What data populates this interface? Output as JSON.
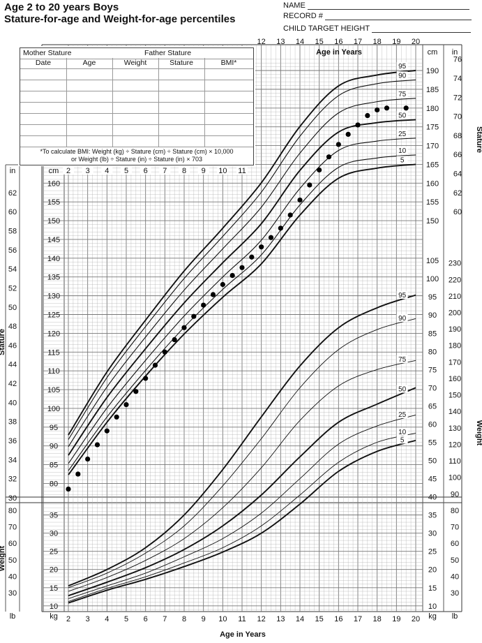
{
  "header": {
    "title_line1": "Age 2 to 20 years Boys",
    "title_line2": "Stature-for-age and Weight-for-age percentiles",
    "name_label": "NAME",
    "record_label": "RECORD #",
    "target_label": "CHILD TARGET HEIGHT"
  },
  "record_table": {
    "mother_label": "Mother Stature",
    "father_label": "Father Stature",
    "columns": [
      "Date",
      "Age",
      "Weight",
      "Stature",
      "BMI*"
    ],
    "note_line1": "*To calculate BMI: Weight (kg) ÷ Stature (cm) ÷ Stature (cm) × 10,000",
    "note_line2": "or Weight (lb) ÷ Stature (in) ÷ Stature (in) × 703"
  },
  "labels": {
    "age_axis_title": "Age in Years",
    "stature_axis_title": "Stature",
    "weight_axis_title": "Weight",
    "cm": "cm",
    "in": "in",
    "kg": "kg",
    "lb": "lb"
  },
  "chart_data": {
    "type": "line",
    "x_label": "Age in Years",
    "xlim": [
      2,
      20
    ],
    "x_ticks": [
      2,
      3,
      4,
      5,
      6,
      7,
      8,
      9,
      10,
      11,
      12,
      13,
      14,
      15,
      16,
      17,
      18,
      19,
      20
    ],
    "stature": {
      "unit": "cm",
      "ylim": [
        77,
        193
      ],
      "left_cm_ticks": [
        80,
        85,
        90,
        95,
        100,
        105,
        110,
        115,
        120,
        125,
        130,
        135,
        140,
        145,
        150,
        155,
        160
      ],
      "left_in_ticks": [
        30,
        32,
        34,
        36,
        38,
        40,
        42,
        44,
        46,
        48,
        50,
        52,
        54,
        56,
        58,
        60,
        62
      ],
      "right_cm_ticks": [
        150,
        155,
        160,
        165,
        170,
        175,
        180,
        185,
        190
      ],
      "right_in_ticks": [
        60,
        62,
        64,
        66,
        68,
        70,
        72,
        74,
        76
      ],
      "series": [
        {
          "name": "95",
          "ages": [
            2,
            4,
            6,
            8,
            10,
            12,
            14,
            16,
            18,
            20
          ],
          "values": [
            92.9,
            109.7,
            123.5,
            136.6,
            148.0,
            160.1,
            175.1,
            185.9,
            188.8,
            190.0
          ]
        },
        {
          "name": "90",
          "ages": [
            2,
            4,
            6,
            8,
            10,
            12,
            14,
            16,
            18,
            20
          ],
          "values": [
            91.7,
            108.2,
            121.8,
            134.6,
            145.8,
            157.6,
            172.5,
            183.3,
            186.5,
            187.5
          ]
        },
        {
          "name": "75",
          "ages": [
            2,
            4,
            6,
            8,
            10,
            12,
            14,
            16,
            18,
            20
          ],
          "values": [
            89.8,
            105.7,
            119.0,
            131.5,
            142.5,
            153.6,
            168.0,
            178.7,
            181.7,
            182.6
          ]
        },
        {
          "name": "50",
          "ages": [
            2,
            4,
            6,
            8,
            10,
            12,
            14,
            16,
            18,
            20
          ],
          "values": [
            87.5,
            102.9,
            115.9,
            128.1,
            138.8,
            149.2,
            163.4,
            173.6,
            176.1,
            176.9
          ]
        },
        {
          "name": "25",
          "ages": [
            2,
            4,
            6,
            8,
            10,
            12,
            14,
            16,
            18,
            20
          ],
          "values": [
            85.3,
            100.1,
            112.8,
            124.6,
            135.0,
            144.8,
            158.6,
            168.7,
            171.2,
            172.0
          ]
        },
        {
          "name": "10",
          "ages": [
            2,
            4,
            6,
            8,
            10,
            12,
            14,
            16,
            18,
            20
          ],
          "values": [
            83.4,
            97.7,
            110.1,
            121.6,
            131.7,
            140.9,
            154.2,
            164.2,
            166.7,
            167.5
          ]
        },
        {
          "name": "5",
          "ages": [
            2,
            4,
            6,
            8,
            10,
            12,
            14,
            16,
            18,
            20
          ],
          "values": [
            82.3,
            96.3,
            108.6,
            119.8,
            129.6,
            138.5,
            151.5,
            161.3,
            164.0,
            165.0
          ]
        }
      ],
      "points": {
        "ages": [
          2,
          2.5,
          3,
          3.5,
          4,
          4.5,
          5,
          5.5,
          6,
          6.5,
          7,
          7.5,
          8,
          8.5,
          9,
          9.5,
          10,
          10.5,
          11,
          11.5,
          12,
          12.5,
          13,
          13.5,
          14,
          14.5,
          15,
          15.5,
          16,
          16.5,
          17,
          17.5,
          18,
          18.5,
          19.5
        ],
        "values": [
          78.5,
          82.5,
          86.5,
          90.3,
          94.0,
          97.7,
          101.0,
          104.5,
          108.0,
          111.5,
          115.0,
          118.3,
          121.5,
          124.5,
          127.5,
          130.3,
          133.0,
          135.4,
          137.5,
          140.3,
          143.0,
          145.5,
          148.0,
          151.5,
          155.5,
          159.5,
          163.5,
          167.0,
          170.3,
          173.0,
          175.5,
          178.0,
          179.5,
          180.0,
          180.0
        ]
      }
    },
    "weight": {
      "unit": "kg",
      "ylim": [
        8.5,
        112
      ],
      "left_kg_ticks": [
        10,
        15,
        20,
        25,
        30,
        35
      ],
      "left_lb_ticks": [
        30,
        40,
        50,
        60,
        70,
        80
      ],
      "right_kg_ticks": [
        10,
        15,
        20,
        25,
        30,
        35,
        40,
        45,
        50,
        55,
        60,
        65,
        70,
        75,
        80,
        85,
        90,
        95,
        100,
        105
      ],
      "right_lb_ticks": [
        30,
        40,
        50,
        60,
        70,
        80,
        90,
        100,
        110,
        120,
        130,
        140,
        150,
        160,
        170,
        180,
        190,
        200,
        210,
        220,
        230
      ],
      "series": [
        {
          "name": "95",
          "ages": [
            2,
            4,
            6,
            8,
            10,
            12,
            14,
            16,
            18,
            20
          ],
          "values": [
            15.5,
            20.0,
            26.0,
            35.0,
            47.5,
            62.0,
            76.0,
            86.5,
            92.0,
            95.5
          ]
        },
        {
          "name": "90",
          "ages": [
            2,
            4,
            6,
            8,
            10,
            12,
            14,
            16,
            18,
            20
          ],
          "values": [
            15.0,
            19.0,
            24.5,
            32.0,
            43.0,
            56.0,
            70.0,
            80.5,
            86.0,
            89.0
          ]
        },
        {
          "name": "75",
          "ages": [
            2,
            4,
            6,
            8,
            10,
            12,
            14,
            16,
            18,
            20
          ],
          "values": [
            14.0,
            17.8,
            22.5,
            28.5,
            37.0,
            48.0,
            61.0,
            70.5,
            75.0,
            77.5
          ]
        },
        {
          "name": "50",
          "ages": [
            2,
            4,
            6,
            8,
            10,
            12,
            14,
            16,
            18,
            20
          ],
          "values": [
            12.8,
            16.5,
            20.5,
            25.5,
            32.0,
            40.5,
            51.0,
            60.5,
            65.5,
            70.0
          ]
        },
        {
          "name": "25",
          "ages": [
            2,
            4,
            6,
            8,
            10,
            12,
            14,
            16,
            18,
            20
          ],
          "values": [
            12.0,
            15.5,
            19.0,
            23.5,
            28.5,
            35.5,
            45.0,
            54.5,
            59.5,
            62.5
          ]
        },
        {
          "name": "10",
          "ages": [
            2,
            4,
            6,
            8,
            10,
            12,
            14,
            16,
            18,
            20
          ],
          "values": [
            11.2,
            14.8,
            18.0,
            21.8,
            26.0,
            32.0,
            40.5,
            49.5,
            55.0,
            57.5
          ]
        },
        {
          "name": "5",
          "ages": [
            2,
            4,
            6,
            8,
            10,
            12,
            14,
            16,
            18,
            20
          ],
          "values": [
            10.8,
            14.3,
            17.3,
            20.8,
            24.8,
            30.0,
            38.0,
            47.0,
            52.5,
            55.5
          ]
        }
      ]
    }
  }
}
